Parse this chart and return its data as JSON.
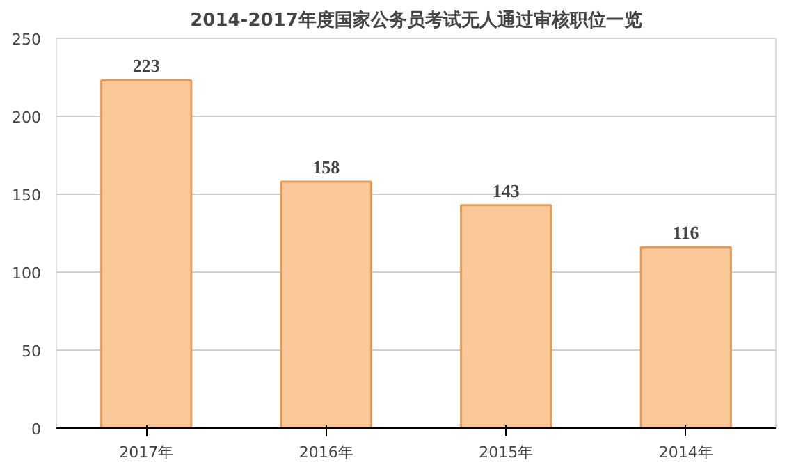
{
  "chart_data": {
    "type": "bar",
    "title": "2014-2017年度国家公务员考试无人通过审核职位一览",
    "categories": [
      "2017年",
      "2016年",
      "2015年",
      "2014年"
    ],
    "values": [
      223,
      158,
      143,
      116
    ],
    "color": "#fbc89a",
    "ylim": [
      0,
      250
    ],
    "yticks": [
      0,
      50,
      100,
      150,
      200,
      250
    ],
    "grid": "y",
    "data_labels": true
  }
}
